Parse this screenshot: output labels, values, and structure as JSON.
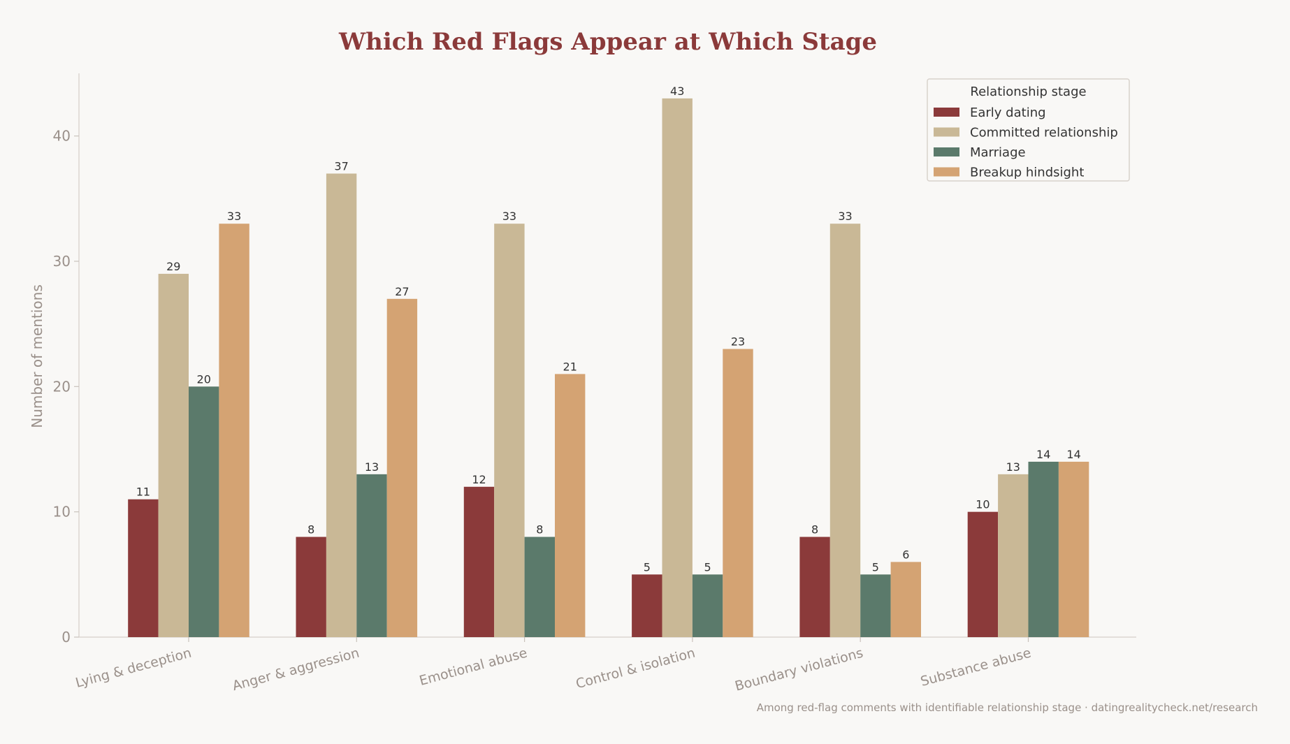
{
  "chart_data": {
    "type": "bar",
    "title": "Which Red Flags Appear at Which Stage",
    "ylabel": "Number of mentions",
    "xlabel": "",
    "ylim": [
      0,
      45
    ],
    "yticks": [
      0,
      10,
      20,
      30,
      40
    ],
    "categories": [
      "Lying & deception",
      "Anger & aggression",
      "Emotional abuse",
      "Control & isolation",
      "Boundary violations",
      "Substance abuse"
    ],
    "series": [
      {
        "name": "Early dating",
        "color": "#8b3a3a",
        "values": [
          11,
          8,
          12,
          5,
          8,
          10
        ]
      },
      {
        "name": "Committed relationship",
        "color": "#c9b896",
        "values": [
          29,
          37,
          33,
          43,
          33,
          13
        ]
      },
      {
        "name": "Marriage",
        "color": "#5b7a6b",
        "values": [
          20,
          13,
          8,
          5,
          5,
          14
        ]
      },
      {
        "name": "Breakup hindsight",
        "color": "#d4a373",
        "values": [
          33,
          27,
          21,
          23,
          6,
          14
        ]
      }
    ],
    "legend": {
      "title": "Relationship stage",
      "placement": "top-right"
    },
    "grid": false,
    "caption": "Among red-flag comments with identifiable relationship stage · datingrealitycheck.net/research"
  }
}
